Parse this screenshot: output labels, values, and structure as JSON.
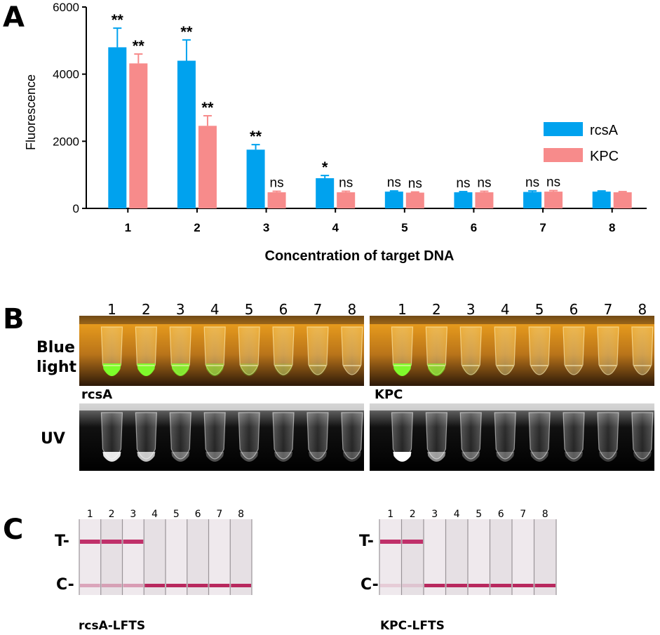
{
  "panel_a": {
    "letter": "A"
  },
  "panel_b": {
    "letter": "B",
    "blue_light_label_1": "Blue",
    "blue_light_label_2": "light",
    "uv_label": "UV",
    "left_group_label": "rcsA",
    "right_group_label": "KPC",
    "tube_numbers": [
      "1",
      "2",
      "3",
      "4",
      "5",
      "6",
      "7",
      "8"
    ]
  },
  "panel_c": {
    "letter": "C",
    "test_line_label": "T-",
    "control_line_label": "C-",
    "left_strip_label": "rcsA-LFTS",
    "right_strip_label": "KPC-LFTS",
    "strip_numbers": [
      "1",
      "2",
      "3",
      "4",
      "5",
      "6",
      "7",
      "8"
    ]
  },
  "chart_data": {
    "type": "bar",
    "title": "",
    "xlabel": "Concentration of target DNA",
    "ylabel": "Fluorescence",
    "ylim": [
      0,
      6000
    ],
    "yticks": [
      "0",
      "2000",
      "4000",
      "6000"
    ],
    "categories": [
      "1",
      "2",
      "3",
      "4",
      "5",
      "6",
      "7",
      "8"
    ],
    "legend_position": "right",
    "series": [
      {
        "name": "rcsA",
        "color": "#00a2ee",
        "values": [
          4800,
          4400,
          1750,
          900,
          500,
          480,
          490,
          500
        ],
        "errors": [
          570,
          620,
          150,
          80,
          20,
          20,
          30,
          20
        ],
        "significance": [
          "**",
          "**",
          "**",
          "*",
          "ns",
          "ns",
          "ns",
          ""
        ]
      },
      {
        "name": "KPC",
        "color": "#f78b8b",
        "values": [
          4320,
          2460,
          480,
          480,
          470,
          480,
          500,
          480
        ],
        "errors": [
          280,
          300,
          30,
          30,
          20,
          30,
          30,
          20
        ],
        "significance": [
          "**",
          "**",
          "ns",
          "ns",
          "ns",
          "ns",
          "ns",
          ""
        ]
      }
    ]
  }
}
